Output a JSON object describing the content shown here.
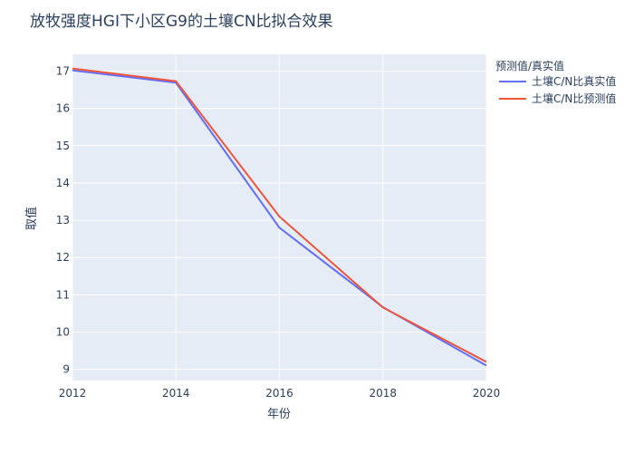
{
  "chart_data": {
    "type": "line",
    "title": "放牧强度HGI下小区G9的土壤CN比拟合效果",
    "xlabel": "年份",
    "ylabel": "取值",
    "x": [
      2012,
      2014,
      2016,
      2018,
      2020
    ],
    "xlim": [
      2012,
      2020
    ],
    "ylim": [
      8.7,
      17.45
    ],
    "xticks": [
      2012,
      2014,
      2016,
      2018,
      2020
    ],
    "yticks": [
      9,
      10,
      11,
      12,
      13,
      14,
      15,
      16,
      17
    ],
    "grid": true,
    "legend": {
      "title": "预测值/真实值",
      "placement": "top-right-outside"
    },
    "series": [
      {
        "name": "土壤C/N比真实值",
        "color": "#636efa",
        "values": [
          17.02,
          16.69,
          12.8,
          10.67,
          9.1
        ]
      },
      {
        "name": "土壤C/N比预测值",
        "color": "#ef553b",
        "values": [
          17.07,
          16.73,
          13.1,
          10.66,
          9.2
        ]
      }
    ]
  },
  "colors": {
    "plot_bg": "#e5ecf6",
    "grid": "#ffffff",
    "text": "#2a3f5f"
  }
}
